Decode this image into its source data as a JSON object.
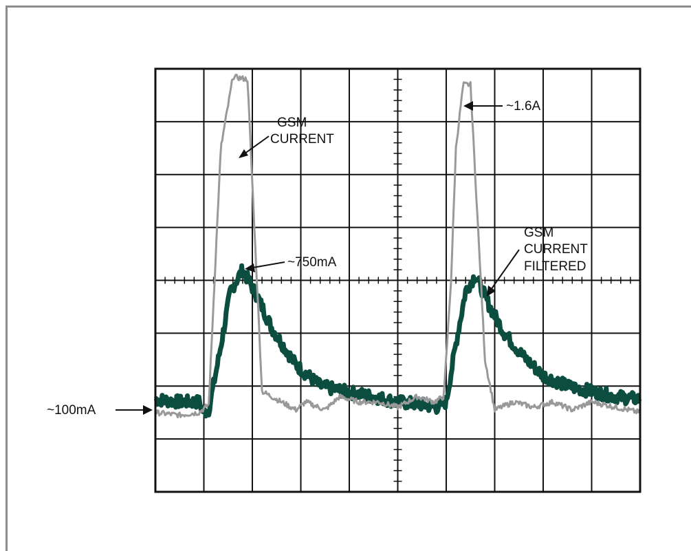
{
  "chart_data": {
    "type": "line",
    "title": "",
    "xlabel": "",
    "ylabel": "",
    "grid": true,
    "grid_divisions": {
      "x": 10,
      "y": 8
    },
    "series": [
      {
        "label": "GSM CURRENT",
        "color": "#999999",
        "x": [
          0.0,
          0.5,
          0.9,
          1.1,
          1.35,
          1.6,
          1.9,
          2.2,
          2.9,
          3.1,
          3.5,
          3.8,
          4.2,
          4.6,
          5.0,
          5.4,
          5.75,
          5.95,
          6.1,
          6.2,
          6.35,
          6.5,
          6.8,
          7.0,
          7.4,
          7.8,
          8.2,
          8.6,
          9.0,
          9.5,
          10.0
        ],
        "y": [
          -2.5,
          -2.55,
          -2.5,
          -2.35,
          2.5,
          3.85,
          3.8,
          -2.1,
          -2.45,
          -2.3,
          -2.45,
          -2.2,
          -2.3,
          -2.3,
          -2.4,
          -2.2,
          -2.3,
          -2.2,
          0.0,
          2.5,
          3.7,
          3.7,
          -1.5,
          -2.45,
          -2.3,
          -2.4,
          -2.3,
          -2.45,
          -2.3,
          -2.4,
          -2.5
        ],
        "noise": 0.05,
        "stroke": 3
      },
      {
        "label": "GSM CURRENT FILTERED",
        "color": "#0b4d3f",
        "x": [
          0.0,
          0.5,
          0.9,
          1.0,
          1.1,
          1.3,
          1.55,
          1.8,
          2.1,
          2.4,
          2.9,
          3.4,
          3.9,
          4.5,
          5.0,
          5.5,
          5.8,
          6.0,
          6.2,
          6.4,
          6.6,
          6.9,
          7.2,
          7.6,
          8.0,
          8.5,
          9.0,
          9.5,
          10.0
        ],
        "y": [
          -2.25,
          -2.3,
          -2.3,
          -2.5,
          -2.45,
          -1.5,
          -0.2,
          0.2,
          -0.3,
          -0.9,
          -1.6,
          -2.0,
          -2.1,
          -2.2,
          -2.3,
          -2.35,
          -2.4,
          -2.3,
          -1.2,
          -0.2,
          0.1,
          -0.5,
          -1.0,
          -1.45,
          -1.8,
          -2.0,
          -2.1,
          -2.2,
          -2.25
        ],
        "noise": 0.12,
        "stroke": 7
      }
    ],
    "annotations": [
      {
        "id": "gsm-current",
        "lines": [
          "GSM",
          "CURRENT"
        ]
      },
      {
        "id": "peak-gsm",
        "lines": [
          "~1.6A"
        ]
      },
      {
        "id": "peak-filtered",
        "lines": [
          "~750mA"
        ]
      },
      {
        "id": "filtered",
        "lines": [
          "GSM",
          "CURRENT",
          "FILTERED"
        ]
      },
      {
        "id": "baseline",
        "lines": [
          "~100mA"
        ]
      }
    ]
  }
}
